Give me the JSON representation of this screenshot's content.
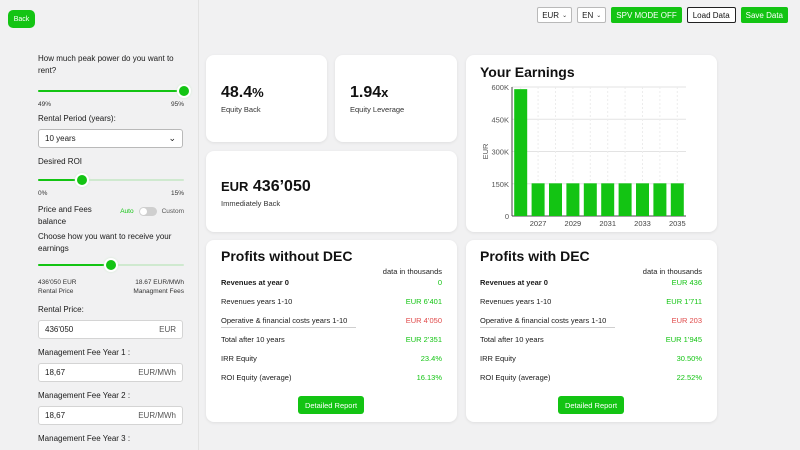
{
  "back_label": "Back",
  "topbar": {
    "currency": "EUR",
    "language": "EN",
    "spv_label": "SPV MODE OFF",
    "load_label": "Load Data",
    "save_label": "Save Data"
  },
  "sidebar": {
    "peak_power_question": "How much peak power do you want to rent?",
    "peak_power": {
      "min": "49%",
      "max": "95%",
      "value": 1.0
    },
    "rental_period_label": "Rental Period (years):",
    "rental_period_value": "10 years",
    "roi_label": "Desired ROI",
    "roi": {
      "min": "0%",
      "max": "15%",
      "value": 0.3
    },
    "price_fees_label": "Price and Fees balance",
    "auto_label": "Auto",
    "custom_label": "Custom",
    "receive_question": "Choose how you want to receive your earnings",
    "receive": {
      "value": 0.5
    },
    "receive_left_value": "436'050 EUR",
    "receive_left_label": "Rental Price",
    "receive_right_value": "18.67 EUR/MWh",
    "receive_right_label": "Managment Fees",
    "rental_price_label": "Rental Price:",
    "rental_price_value": "436'050",
    "rental_price_unit": "EUR",
    "fee1_label": "Management Fee Year 1 :",
    "fee1_value": "18,67",
    "fee1_unit": "EUR/MWh",
    "fee2_label": "Management Fee Year 2 :",
    "fee2_value": "18,67",
    "fee2_unit": "EUR/MWh",
    "fee3_label": "Management Fee Year 3 :"
  },
  "metrics": {
    "equity_back_value": "48.4",
    "equity_back_unit": "%",
    "equity_back_label": "Equity Back",
    "leverage_value": "1.94",
    "leverage_unit": "x",
    "leverage_label": "Equity Leverage",
    "immediate_currency": "EUR",
    "immediate_value": "436’050",
    "immediate_label": "Immediately Back"
  },
  "earnings": {
    "title": "Your Earnings"
  },
  "chart_data": {
    "type": "bar",
    "title": "Your Earnings",
    "ylabel": "EUR",
    "xlabel": "",
    "categories": [
      "2026",
      "2027",
      "2028",
      "2029",
      "2030",
      "2031",
      "2032",
      "2033",
      "2034",
      "2035"
    ],
    "x_tick_labels": [
      "2027",
      "2029",
      "2031",
      "2033",
      "2035"
    ],
    "y_tick_labels": [
      "0",
      "150K",
      "300K",
      "450K",
      "600K"
    ],
    "values": [
      590000,
      152000,
      152000,
      152000,
      152000,
      152000,
      152000,
      152000,
      152000,
      152000
    ],
    "ylim": [
      0,
      600000
    ],
    "grid": true,
    "bar_color": "#13c413"
  },
  "profits_without": {
    "title": "Profits without DEC",
    "note": "data in thousands",
    "rows": [
      {
        "label": "Revenues at year 0",
        "value": "0"
      },
      {
        "label": "Revenues years 1-10",
        "value": "EUR 6’401"
      },
      {
        "label": "Operative & financial costs years 1-10",
        "value": "EUR 4’050"
      },
      {
        "label": "Total after 10 years",
        "value": "EUR 2’351"
      },
      {
        "label": "IRR Equity",
        "value": "23.4%"
      },
      {
        "label": "ROI Equity (average)",
        "value": "16.13%"
      }
    ],
    "button": "Detailed Report"
  },
  "profits_with": {
    "title": "Profits with DEC",
    "note": "data in thousands",
    "rows": [
      {
        "label": "Revenues at year 0",
        "value": "EUR 436"
      },
      {
        "label": "Revenues years 1-10",
        "value": "EUR 1’711"
      },
      {
        "label": "Operative & financial costs years 1-10",
        "value": "EUR 203"
      },
      {
        "label": "Total after 10 years",
        "value": "EUR 1’945"
      },
      {
        "label": "IRR Equity",
        "value": "30.50%"
      },
      {
        "label": "ROI Equity (average)",
        "value": "22.52%"
      }
    ],
    "button": "Detailed Report"
  },
  "colors": {
    "accent": "#13c413",
    "negative": "#e04a4a"
  }
}
